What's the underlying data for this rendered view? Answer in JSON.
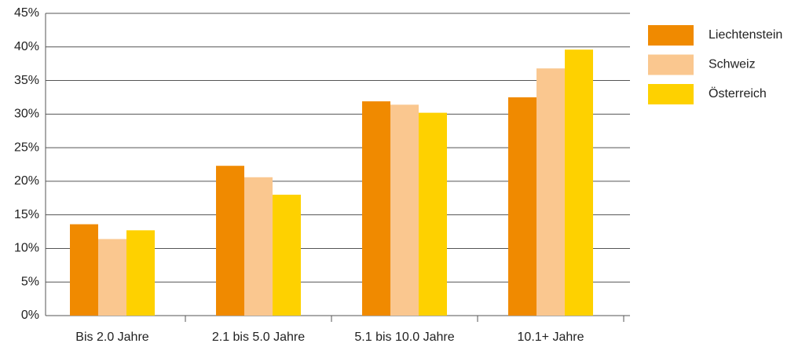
{
  "chart_data": {
    "type": "bar",
    "categories": [
      "Bis 2.0 Jahre",
      "2.1 bis 5.0 Jahre",
      "5.1 bis 10.0 Jahre",
      "10.1+ Jahre"
    ],
    "series": [
      {
        "name": "Liechtenstein",
        "color": "#f08a00",
        "values": [
          13.6,
          22.3,
          31.9,
          32.5
        ]
      },
      {
        "name": "Schweiz",
        "color": "#fac78f",
        "values": [
          11.4,
          20.6,
          31.4,
          36.8
        ]
      },
      {
        "name": "Österreich",
        "color": "#fed100",
        "values": [
          12.7,
          18.0,
          30.2,
          39.6
        ]
      }
    ],
    "ylim": [
      0,
      45
    ],
    "yticks": [
      {
        "value": 0,
        "label": "0%"
      },
      {
        "value": 5,
        "label": "5%"
      },
      {
        "value": 10,
        "label": "10%"
      },
      {
        "value": 15,
        "label": "15%"
      },
      {
        "value": 20,
        "label": "20%"
      },
      {
        "value": 25,
        "label": "25%"
      },
      {
        "value": 30,
        "label": "30%"
      },
      {
        "value": 35,
        "label": "35%"
      },
      {
        "value": 40,
        "label": "40%"
      },
      {
        "value": 45,
        "label": "45%"
      }
    ],
    "grid": true,
    "legend": "right"
  }
}
